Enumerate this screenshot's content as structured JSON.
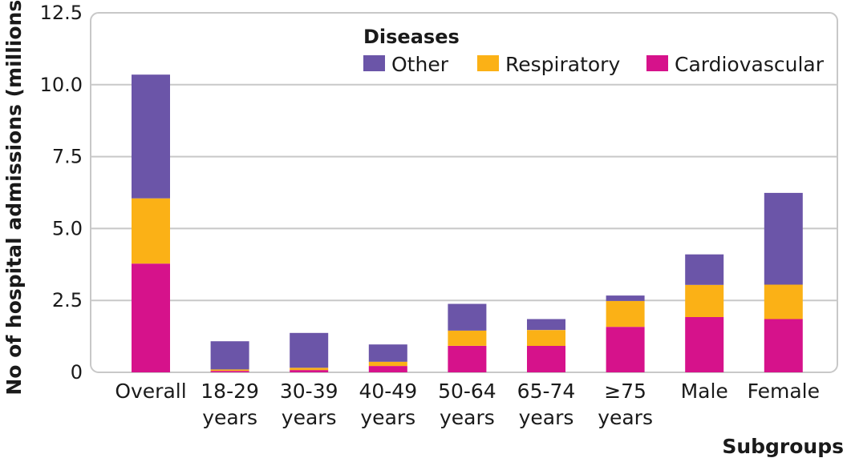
{
  "chart_data": {
    "type": "bar",
    "stacked": true,
    "categories": [
      [
        "Overall"
      ],
      [
        "18-29",
        "years"
      ],
      [
        "30-39",
        "years"
      ],
      [
        "40-49",
        "years"
      ],
      [
        "50-64",
        "years"
      ],
      [
        "65-74",
        "years"
      ],
      [
        "≥75",
        "years"
      ],
      [
        "Male"
      ],
      [
        "Female"
      ]
    ],
    "series": [
      {
        "name": "Cardiovascular",
        "color": "#d6128b",
        "values": [
          3.78,
          0.05,
          0.08,
          0.22,
          0.92,
          0.92,
          1.58,
          1.92,
          1.85
        ]
      },
      {
        "name": "Respiratory",
        "color": "#fbb116",
        "values": [
          2.27,
          0.05,
          0.08,
          0.15,
          0.53,
          0.55,
          0.9,
          1.12,
          1.2
        ]
      },
      {
        "name": "Other",
        "color": "#6b55a8",
        "values": [
          4.3,
          0.98,
          1.21,
          0.6,
          0.93,
          0.38,
          0.19,
          1.06,
          3.19
        ]
      }
    ],
    "legend_order": [
      "Other",
      "Respiratory",
      "Cardiovascular"
    ],
    "legend_title": "Diseases",
    "legend_position": "top-right",
    "xlabel": "Subgroups",
    "ylabel": "No of hospital admissions (millions)",
    "ylim": [
      0,
      12.5
    ],
    "yticks": [
      "0",
      "2.5",
      "5.0",
      "7.5",
      "10.0",
      "12.5"
    ],
    "grid": "horizontal",
    "frame_color": "#c8c8c8"
  }
}
